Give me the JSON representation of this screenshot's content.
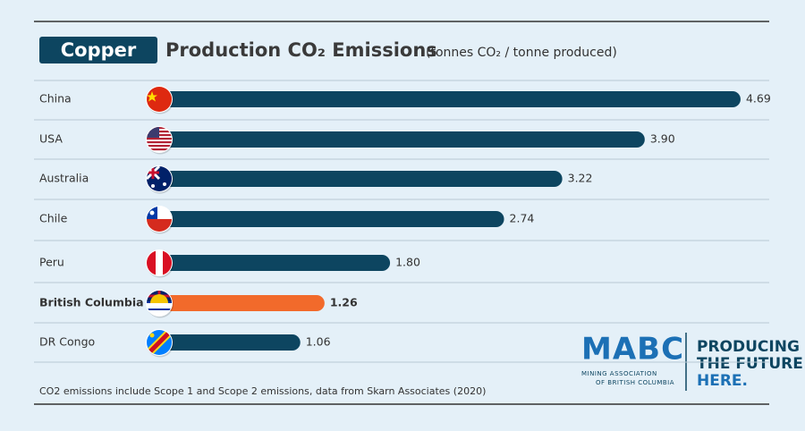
{
  "chart_data": {
    "type": "hbar",
    "badge": "Copper",
    "title": "Production CO₂ Emissions",
    "subtitle": "(tonnes CO₂ / tonne produced)",
    "categories": [
      "China",
      "USA",
      "Australia",
      "Chile",
      "Peru",
      "British Columbia",
      "DR Congo"
    ],
    "values": [
      4.69,
      3.9,
      3.22,
      2.74,
      1.8,
      1.26,
      1.06
    ],
    "value_labels": [
      "4.69",
      "3.90",
      "3.22",
      "2.74",
      "1.80",
      "1.26",
      "1.06"
    ],
    "colors": [
      "#0d4560",
      "#0d4560",
      "#0d4560",
      "#0d4560",
      "#0d4560",
      "#f26a2b",
      "#0d4560"
    ],
    "highlight": 5,
    "footnote": "CO2 emissions include Scope 1 and Scope 2 emissions, data from Skarn Associates (2020)"
  },
  "logo": {
    "mark": "MABC",
    "line1": "MINING ASSOCIATION",
    "line2": "OF BRITISH COLUMBIA",
    "slogan": [
      "PRODUCING",
      "THE FUTURE",
      "HERE."
    ]
  }
}
